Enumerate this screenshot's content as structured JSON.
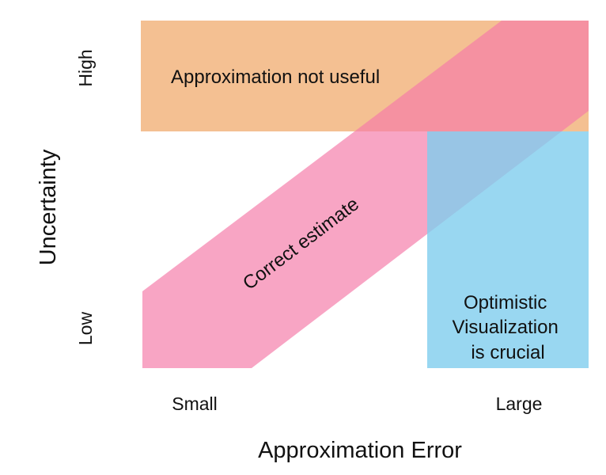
{
  "axes": {
    "x_title": "Approximation Error",
    "y_title": "Uncertainty",
    "x_ticks": {
      "low": "Small",
      "high": "Large"
    },
    "y_ticks": {
      "low": "Low",
      "high": "High"
    }
  },
  "regions": [
    {
      "key": "not_useful",
      "lines": [
        "Approximation not useful"
      ],
      "color": "#f0a868"
    },
    {
      "key": "correct",
      "lines": [
        "Correct estimate"
      ],
      "color": "#f47aa8"
    },
    {
      "key": "optimistic",
      "lines": [
        "Optimistic",
        "Visualization",
        "is crucial"
      ],
      "color": "#7fcdee"
    }
  ]
}
